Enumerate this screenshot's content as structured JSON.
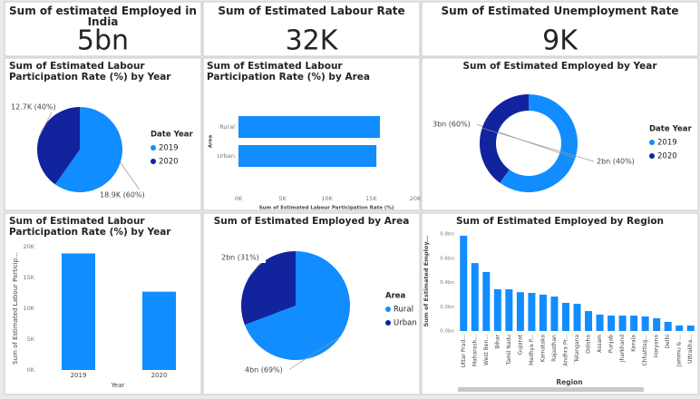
{
  "cards": [
    {
      "title": "Sum of estimated Employed in India",
      "value": "5bn"
    },
    {
      "title": "Sum of Estimated Labour Rate",
      "value": "32K"
    },
    {
      "title": "Sum of Estimated Unemployment Rate",
      "value": "9K"
    }
  ],
  "chart_data": [
    {
      "type": "pie",
      "title": "Sum of Estimated Labour Participation Rate (%) by Year",
      "legend_title": "Date Year",
      "categories": [
        "2019",
        "2020"
      ],
      "values": [
        18900,
        12700
      ],
      "value_labels": [
        "18.9K (60%)",
        "12.7K (40%)"
      ],
      "colors": [
        "#118DFF",
        "#12239E"
      ]
    },
    {
      "type": "hbar",
      "title": "Sum of Estimated Labour Participation Rate (%) by Area",
      "categories": [
        "Rural",
        "Urban"
      ],
      "values": [
        16000,
        15600
      ],
      "color": "#118DFF",
      "xlim": [
        0,
        20000
      ],
      "xticks": [
        {
          "value": 0,
          "label": "0K"
        },
        {
          "value": 5000,
          "label": "5K"
        },
        {
          "value": 10000,
          "label": "10K"
        },
        {
          "value": 15000,
          "label": "15K"
        },
        {
          "value": 20000,
          "label": "20K"
        }
      ],
      "xlabel": "Sum of Estimated Labour Participation Rate (%)",
      "ylabel": "Area"
    },
    {
      "type": "donut",
      "title": "Sum of Estimated Employed by Year",
      "legend_title": "Date Year",
      "categories": [
        "2019",
        "2020"
      ],
      "values": [
        3000000000,
        2000000000
      ],
      "value_labels": [
        "3bn (60%)",
        "2bn (40%)"
      ],
      "colors": [
        "#118DFF",
        "#12239E"
      ]
    },
    {
      "type": "column",
      "title": "Sum of Estimated Labour Participation Rate (%) by Year",
      "categories": [
        "2019",
        "2020"
      ],
      "values": [
        18900,
        12700
      ],
      "color": "#118DFF",
      "ylim": [
        0,
        20000
      ],
      "yticks": [
        {
          "value": 0,
          "label": "0K"
        },
        {
          "value": 5000,
          "label": "5K"
        },
        {
          "value": 10000,
          "label": "10K"
        },
        {
          "value": 15000,
          "label": "15K"
        },
        {
          "value": 20000,
          "label": "20K"
        }
      ],
      "xlabel": "Year",
      "ylabel": "Sum of Estimated Labour Particip..."
    },
    {
      "type": "pie",
      "title": "Sum of Estimated Employed by Area",
      "legend_title": "Area",
      "categories": [
        "Rural",
        "Urban"
      ],
      "values": [
        3600000000,
        1600000000
      ],
      "value_labels": [
        "4bn (69%)",
        "2bn (31%)"
      ],
      "colors": [
        "#118DFF",
        "#12239E"
      ]
    },
    {
      "type": "column",
      "title": "Sum of Estimated Employed by Region",
      "categories": [
        "Uttar Prad...",
        "Maharash...",
        "West Ben...",
        "Bihar",
        "Tamil Nadu",
        "Gujarat",
        "Madhya P...",
        "Karnataka",
        "Rajasthan",
        "Andhra Pr...",
        "Telangana",
        "Odisha",
        "Assam",
        "Punjab",
        "Jharkhand",
        "Kerala",
        "Chhattisg...",
        "Haryana",
        "Delhi",
        "Jammu & ...",
        "Uttrakha..."
      ],
      "values": [
        785000000,
        560000000,
        486000000,
        344000000,
        344000000,
        320000000,
        314000000,
        300000000,
        284000000,
        232000000,
        224000000,
        164000000,
        135000000,
        127000000,
        127000000,
        127000000,
        120000000,
        105000000,
        75000000,
        45000000,
        45000000
      ],
      "color": "#118DFF",
      "ylim": [
        0,
        800000000
      ],
      "yticks": [
        {
          "value": 0,
          "label": "0.0bn"
        },
        {
          "value": 200000000,
          "label": "0.2bn"
        },
        {
          "value": 400000000,
          "label": "0.4bn"
        },
        {
          "value": 600000000,
          "label": "0.6bn"
        },
        {
          "value": 800000000,
          "label": "0.8bn"
        }
      ],
      "xlabel": "Region",
      "ylabel": "Sum of Estimated Employ..."
    }
  ]
}
